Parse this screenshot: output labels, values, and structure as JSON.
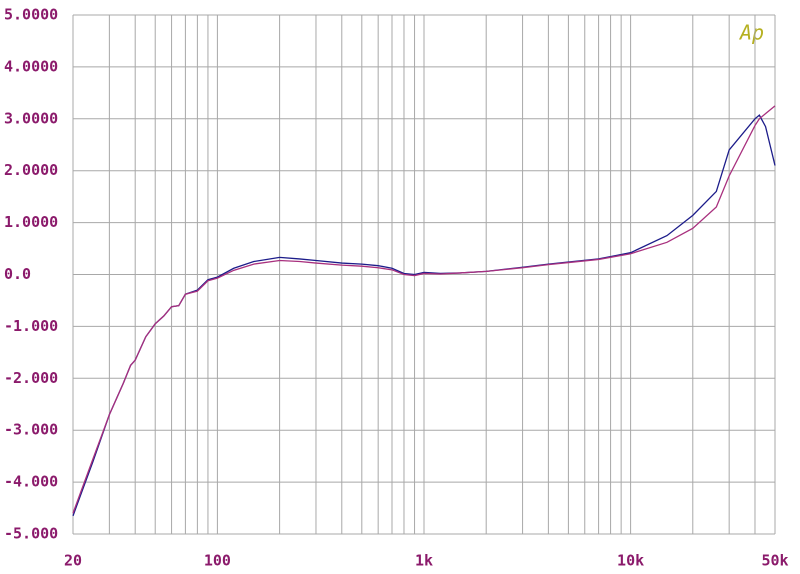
{
  "chart_data": {
    "type": "line",
    "annotation": "Ap",
    "annotation_color": "#b5b020",
    "x_scale": "log",
    "xlim": [
      20,
      50000
    ],
    "xticks": [
      20,
      100,
      {
        "value": 1000,
        "label": "1k"
      },
      {
        "value": 10000,
        "label": "10k"
      },
      {
        "value": 50000,
        "label": "50k"
      }
    ],
    "xgrid": [
      30,
      40,
      50,
      60,
      70,
      80,
      90,
      200,
      300,
      400,
      500,
      600,
      700,
      800,
      900,
      2000,
      3000,
      4000,
      5000,
      6000,
      7000,
      8000,
      9000,
      20000,
      30000,
      40000
    ],
    "ylim": [
      -5,
      5
    ],
    "yticks": [
      {
        "value": 5,
        "label": "5.0000"
      },
      {
        "value": 4,
        "label": "4.0000"
      },
      {
        "value": 3,
        "label": "3.0000"
      },
      {
        "value": 2,
        "label": "2.0000"
      },
      {
        "value": 1,
        "label": "1.0000"
      },
      {
        "value": 0,
        "label": "0.0"
      },
      {
        "value": -1,
        "label": "-1.000"
      },
      {
        "value": -2,
        "label": "-2.000"
      },
      {
        "value": -3,
        "label": "-3.000"
      },
      {
        "value": -4,
        "label": "-4.000"
      },
      {
        "value": -5,
        "label": "-5.000"
      }
    ],
    "grid": true,
    "x": [
      20,
      22,
      25,
      30,
      35,
      38,
      40,
      45,
      50,
      55,
      60,
      65,
      70,
      80,
      90,
      100,
      120,
      150,
      200,
      250,
      300,
      400,
      500,
      600,
      700,
      800,
      900,
      1000,
      1200,
      1500,
      2000,
      3000,
      4000,
      5000,
      7000,
      10000,
      15000,
      20000,
      26000,
      30000,
      40000,
      42000,
      45000,
      50000
    ],
    "series": [
      {
        "color": "#1c1c8a",
        "values": [
          -4.65,
          -4.2,
          -3.6,
          -2.7,
          -2.1,
          -1.75,
          -1.65,
          -1.2,
          -0.95,
          -0.8,
          -0.62,
          -0.6,
          -0.38,
          -0.3,
          -0.1,
          -0.05,
          0.12,
          0.25,
          0.33,
          0.3,
          0.27,
          0.22,
          0.2,
          0.17,
          0.12,
          0.02,
          0.0,
          0.04,
          0.02,
          0.03,
          0.06,
          0.14,
          0.2,
          0.24,
          0.3,
          0.42,
          0.75,
          1.14,
          1.6,
          2.4,
          3.0,
          3.07,
          2.85,
          2.1
        ]
      },
      {
        "color": "#a8307e",
        "values": [
          -4.6,
          -4.15,
          -3.55,
          -2.7,
          -2.1,
          -1.75,
          -1.65,
          -1.2,
          -0.95,
          -0.8,
          -0.62,
          -0.6,
          -0.38,
          -0.32,
          -0.12,
          -0.07,
          0.08,
          0.2,
          0.27,
          0.25,
          0.22,
          0.18,
          0.16,
          0.13,
          0.09,
          0.0,
          -0.02,
          0.02,
          0.01,
          0.03,
          0.06,
          0.13,
          0.19,
          0.23,
          0.29,
          0.4,
          0.62,
          0.89,
          1.3,
          1.9,
          2.87,
          3.0,
          3.1,
          3.25
        ]
      }
    ]
  }
}
